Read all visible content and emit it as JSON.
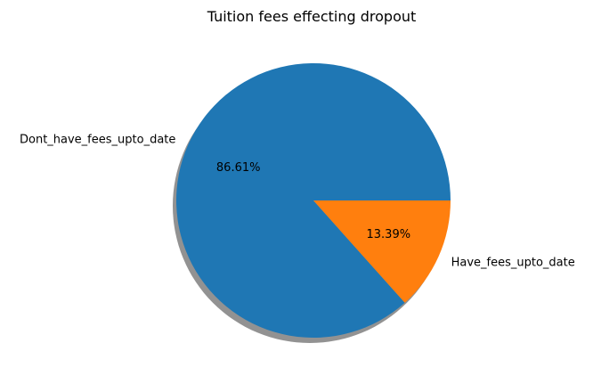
{
  "chart_data": {
    "type": "pie",
    "title": "Tuition fees effecting dropout",
    "labels": [
      "Dont_have_fees_upto_date",
      "Have_fees_upto_date"
    ],
    "values": [
      86.61,
      13.39
    ],
    "percent_labels": [
      "86.61%",
      "13.39%"
    ],
    "colors": [
      "#1f77b4",
      "#ff7f0e"
    ],
    "start_angle_deg": 0,
    "shadow": true,
    "legend": "none"
  }
}
